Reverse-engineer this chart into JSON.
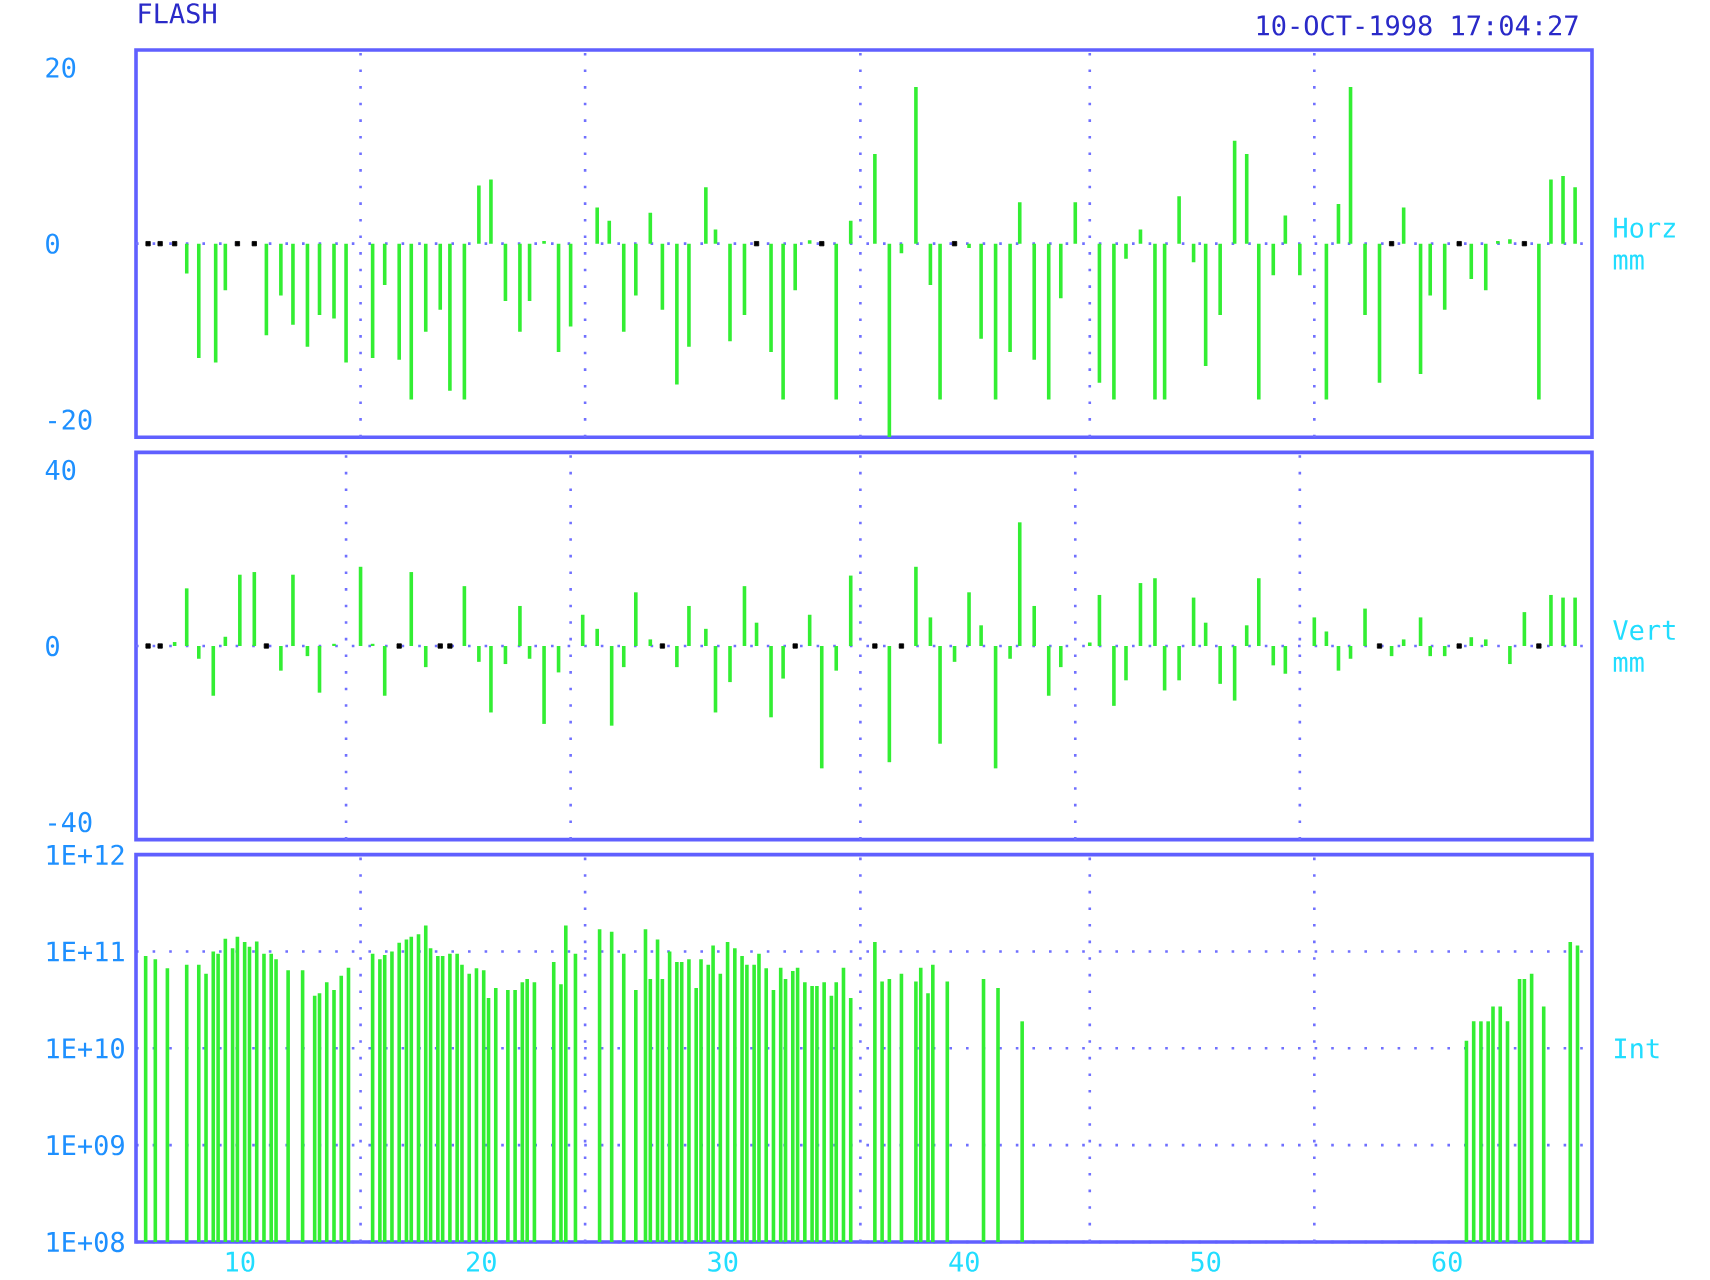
{
  "chart_data": [
    {
      "type": "bar",
      "title": "FLASH",
      "subtitle": "10-OCT-1998 17:04:27",
      "ylabel": "Horz mm",
      "xlim": [
        5.7,
        66
      ],
      "ylim": [
        -22,
        22
      ],
      "yticks": [
        -20,
        0,
        20
      ],
      "tick_labels": "y",
      "ref_lines": [
        {
          "axis": "y",
          "value": 0,
          "line_style": "dotted",
          "color": "#7070ff"
        },
        {
          "axis": "x",
          "value": 15.0,
          "line_style": "dotted",
          "color": "#7070ff"
        },
        {
          "axis": "x",
          "value": 24.3,
          "line_style": "dotted",
          "color": "#7070ff"
        },
        {
          "axis": "x",
          "value": 35.7,
          "line_style": "dotted",
          "color": "#7070ff"
        },
        {
          "axis": "x",
          "value": 45.2,
          "line_style": "dotted",
          "color": "#7070ff"
        },
        {
          "axis": "x",
          "value": 54.5,
          "line_style": "dotted",
          "color": "#7070ff"
        }
      ],
      "series": [
        {
          "color": "#33ee33",
          "x": [
            7.8,
            8.3,
            9.0,
            9.4,
            11.1,
            11.7,
            12.2,
            12.8,
            13.3,
            13.9,
            14.4,
            15.5,
            16.0,
            16.6,
            17.1,
            17.7,
            18.3,
            18.7,
            19.3,
            19.9,
            20.4,
            21.0,
            21.6,
            22.0,
            22.6,
            23.2,
            23.7,
            24.8,
            25.3,
            25.9,
            26.4,
            27.0,
            27.5,
            28.1,
            28.6,
            29.3,
            29.7,
            30.3,
            30.9,
            32.0,
            32.5,
            33.0,
            33.6,
            34.7,
            35.3,
            36.3,
            36.9,
            37.4,
            38.0,
            38.6,
            39.0,
            40.2,
            40.7,
            41.3,
            41.9,
            42.3,
            42.9,
            43.5,
            44.0,
            44.6,
            45.6,
            46.2,
            46.7,
            47.3,
            47.9,
            48.3,
            48.9,
            49.5,
            50.0,
            50.6,
            51.2,
            51.7,
            52.2,
            52.8,
            53.3,
            53.9,
            55.0,
            55.5,
            56.0,
            56.6,
            57.2,
            58.2,
            58.9,
            59.3,
            59.9,
            61.0,
            61.6,
            62.1,
            62.6,
            63.8,
            64.3,
            64.8,
            65.3
          ],
          "values": [
            -3.4,
            -13.0,
            -13.5,
            -5.3,
            -10.4,
            -5.9,
            -9.2,
            -11.7,
            -8.1,
            -8.5,
            -13.5,
            -13.0,
            -4.7,
            -13.2,
            -17.7,
            -10.0,
            -7.5,
            -16.7,
            -17.7,
            6.6,
            7.3,
            -6.5,
            -10.0,
            -6.5,
            0.3,
            -12.3,
            -9.4,
            4.1,
            2.6,
            -10.0,
            -5.9,
            3.5,
            -7.5,
            -16.0,
            -11.7,
            6.4,
            1.6,
            -11.1,
            -8.1,
            -12.3,
            -17.7,
            -5.3,
            0.4,
            -17.7,
            2.6,
            10.2,
            -22,
            -1.1,
            17.8,
            -4.7,
            -17.7,
            -0.5,
            -10.8,
            -17.7,
            -12.3,
            4.7,
            -13.2,
            -17.7,
            -6.2,
            4.7,
            -15.8,
            -17.7,
            -1.7,
            1.6,
            -17.7,
            -17.7,
            5.4,
            -2.1,
            -13.9,
            -8.1,
            11.7,
            10.2,
            -17.7,
            -3.6,
            3.2,
            -3.6,
            -17.7,
            4.5,
            17.8,
            -8.1,
            -15.8,
            4.1,
            -14.8,
            -5.9,
            -7.5,
            -4.0,
            -5.3,
            0.3,
            0.5,
            -17.7,
            7.3,
            7.7,
            6.4
          ]
        },
        {
          "type": "scatter",
          "marker": "square",
          "color": "#000000",
          "x": [
            6.2,
            6.7,
            7.3,
            9.9,
            10.6,
            31.4,
            34.1,
            39.6,
            57.7,
            60.5,
            63.2
          ],
          "values": [
            0,
            0,
            0,
            0,
            0,
            0,
            0,
            0,
            0,
            0,
            0
          ]
        }
      ]
    },
    {
      "type": "bar",
      "ylabel": "Vert mm",
      "xlim": [
        5.7,
        66
      ],
      "ylim": [
        -44,
        44
      ],
      "yticks": [
        -40,
        0,
        40
      ],
      "tick_labels": "y",
      "ref_lines": [
        {
          "axis": "y",
          "value": 0,
          "line_style": "dotted",
          "color": "#7070ff"
        },
        {
          "axis": "x",
          "value": 14.4,
          "line_style": "dotted",
          "color": "#7070ff"
        },
        {
          "axis": "x",
          "value": 23.7,
          "line_style": "dotted",
          "color": "#7070ff"
        },
        {
          "axis": "x",
          "value": 35.7,
          "line_style": "dotted",
          "color": "#7070ff"
        },
        {
          "axis": "x",
          "value": 44.6,
          "line_style": "dotted",
          "color": "#7070ff"
        },
        {
          "axis": "x",
          "value": 53.9,
          "line_style": "dotted",
          "color": "#7070ff"
        }
      ],
      "series": [
        {
          "color": "#33ee33",
          "x": [
            7.3,
            7.8,
            8.3,
            8.9,
            9.4,
            10.0,
            10.6,
            11.7,
            12.2,
            12.8,
            13.3,
            13.9,
            15.0,
            15.5,
            16.0,
            17.1,
            17.7,
            19.3,
            19.9,
            20.4,
            21.0,
            21.6,
            22.0,
            22.6,
            23.2,
            24.2,
            24.8,
            25.4,
            25.9,
            26.4,
            27.0,
            28.1,
            28.6,
            29.3,
            29.7,
            30.3,
            30.9,
            31.4,
            32.0,
            32.5,
            33.6,
            34.1,
            34.7,
            35.3,
            36.9,
            38.0,
            38.6,
            39.0,
            39.6,
            40.2,
            40.7,
            41.3,
            41.9,
            42.3,
            42.9,
            43.5,
            44.0,
            45.2,
            45.6,
            46.2,
            46.7,
            47.3,
            47.9,
            48.3,
            48.9,
            49.5,
            50.0,
            50.6,
            51.2,
            51.7,
            52.2,
            52.8,
            53.3,
            54.5,
            55.0,
            55.5,
            56.0,
            56.6,
            57.7,
            58.2,
            58.9,
            59.3,
            59.9,
            61.0,
            61.6,
            62.6,
            63.2,
            64.3,
            64.8,
            65.3
          ],
          "values": [
            0.9,
            13.1,
            -2.9,
            -11.3,
            2.1,
            16.2,
            16.8,
            -5.6,
            16.2,
            -2.3,
            -10.6,
            0.5,
            18.0,
            0.5,
            -11.3,
            16.8,
            -4.8,
            13.6,
            -3.6,
            -15.1,
            -4.1,
            9.1,
            -2.9,
            -17.7,
            -6.0,
            7.1,
            3.9,
            -18.1,
            -4.8,
            12.2,
            1.5,
            -4.8,
            9.1,
            3.9,
            -15.1,
            -8.2,
            13.6,
            5.3,
            -16.2,
            -7.4,
            7.1,
            -27.8,
            -5.6,
            16.0,
            -26.4,
            18.0,
            6.5,
            -22.2,
            -3.6,
            12.2,
            4.7,
            -27.8,
            -2.9,
            28.1,
            9.1,
            -11.3,
            -4.8,
            0.8,
            11.6,
            -13.6,
            -7.8,
            14.3,
            15.4,
            -10.1,
            -7.8,
            11.0,
            5.3,
            -8.6,
            -12.4,
            4.7,
            15.4,
            -4.4,
            -6.3,
            6.5,
            3.3,
            -5.6,
            -2.9,
            8.5,
            -2.3,
            1.5,
            6.5,
            -2.3,
            -2.3,
            2.0,
            1.5,
            -4.1,
            7.7,
            11.6,
            11.0,
            11.0
          ]
        },
        {
          "type": "scatter",
          "marker": "square",
          "color": "#000000",
          "x": [
            6.2,
            6.7,
            11.1,
            16.6,
            18.3,
            18.7,
            27.5,
            33.0,
            36.3,
            37.4,
            57.2,
            60.5,
            63.8
          ],
          "values": [
            0,
            0,
            0,
            0,
            0,
            0,
            0,
            0,
            0,
            0,
            0,
            0,
            0
          ]
        }
      ]
    },
    {
      "type": "bar",
      "ylabel": "Int",
      "xlim": [
        5.7,
        66
      ],
      "ylim": [
        100000000.0,
        1000000000000.0
      ],
      "log": "y",
      "grid": "y",
      "xticks": [
        10,
        20,
        30,
        40,
        50,
        60
      ],
      "yticks": [
        {
          "value": 100000000.0,
          "label": "1E+08"
        },
        {
          "value": 1000000000.0,
          "label": "1E+09"
        },
        {
          "value": 10000000000.0,
          "label": "1E+10"
        },
        {
          "value": 100000000000.0,
          "label": "1E+11"
        },
        {
          "value": 1000000000000.0,
          "label": "1E+12"
        }
      ],
      "ref_lines": [
        {
          "axis": "x",
          "value": 15.0,
          "line_style": "dotted",
          "color": "#7070ff"
        },
        {
          "axis": "x",
          "value": 24.3,
          "line_style": "dotted",
          "color": "#7070ff"
        },
        {
          "axis": "x",
          "value": 35.7,
          "line_style": "dotted",
          "color": "#7070ff"
        },
        {
          "axis": "x",
          "value": 45.2,
          "line_style": "dotted",
          "color": "#7070ff"
        },
        {
          "axis": "x",
          "value": 54.5,
          "line_style": "dotted",
          "color": "#7070ff"
        }
      ],
      "series": [
        {
          "color": "#33ee33",
          "x": [
            6.1,
            6.5,
            7.0,
            7.8,
            8.3,
            8.6,
            8.9,
            9.1,
            9.4,
            9.7,
            9.9,
            10.2,
            10.4,
            10.7,
            11.0,
            11.3,
            11.5,
            12.0,
            12.6,
            13.1,
            13.3,
            13.6,
            13.9,
            14.2,
            14.5,
            15.5,
            15.8,
            16.0,
            16.3,
            16.6,
            16.9,
            17.1,
            17.4,
            17.7,
            17.9,
            18.2,
            18.4,
            18.7,
            19.0,
            19.2,
            19.5,
            19.8,
            20.1,
            20.3,
            20.6,
            21.1,
            21.4,
            21.7,
            21.9,
            22.2,
            23.0,
            23.3,
            23.5,
            23.9,
            24.9,
            25.4,
            25.9,
            26.4,
            26.8,
            27.0,
            27.3,
            27.5,
            27.8,
            28.1,
            28.3,
            28.6,
            28.9,
            29.1,
            29.4,
            29.6,
            29.9,
            30.2,
            30.5,
            30.8,
            31.0,
            31.3,
            31.5,
            31.8,
            32.1,
            32.4,
            32.6,
            32.9,
            33.1,
            33.4,
            33.7,
            33.9,
            34.2,
            34.5,
            34.7,
            35.0,
            35.3,
            36.3,
            36.6,
            36.9,
            37.4,
            38.0,
            38.2,
            38.5,
            38.7,
            39.3,
            40.8,
            41.4,
            42.4,
            60.8,
            61.1,
            61.4,
            61.7,
            61.9,
            62.2,
            62.5,
            63.0,
            63.2,
            63.5,
            64.0,
            65.1,
            65.4
          ],
          "values": [
            90000000000.0,
            83000000000.0,
            67000000000.0,
            73000000000.0,
            73000000000.0,
            59000000000.0,
            100000000000.0,
            95000000000.0,
            135000000000.0,
            108000000000.0,
            142000000000.0,
            125000000000.0,
            112000000000.0,
            127000000000.0,
            95000000000.0,
            95000000000.0,
            83000000000.0,
            64000000000.0,
            64000000000.0,
            35000000000.0,
            37000000000.0,
            48000000000.0,
            40000000000.0,
            56000000000.0,
            68000000000.0,
            95000000000.0,
            83000000000.0,
            92000000000.0,
            100000000000.0,
            123000000000.0,
            133000000000.0,
            142000000000.0,
            151000000000.0,
            186000000000.0,
            108000000000.0,
            90000000000.0,
            90000000000.0,
            95000000000.0,
            95000000000.0,
            73000000000.0,
            59000000000.0,
            67000000000.0,
            64000000000.0,
            33000000000.0,
            42000000000.0,
            40000000000.0,
            40000000000.0,
            48000000000.0,
            52000000000.0,
            48000000000.0,
            78000000000.0,
            46000000000.0,
            186000000000.0,
            95000000000.0,
            170000000000.0,
            160000000000.0,
            95000000000.0,
            40000000000.0,
            170000000000.0,
            52000000000.0,
            133000000000.0,
            52000000000.0,
            100000000000.0,
            78000000000.0,
            78000000000.0,
            83000000000.0,
            42000000000.0,
            83000000000.0,
            73000000000.0,
            115000000000.0,
            59000000000.0,
            125000000000.0,
            108000000000.0,
            90000000000.0,
            73000000000.0,
            73000000000.0,
            95000000000.0,
            67000000000.0,
            40000000000.0,
            68000000000.0,
            52000000000.0,
            63000000000.0,
            68000000000.0,
            48000000000.0,
            44000000000.0,
            44000000000.0,
            48000000000.0,
            35000000000.0,
            48000000000.0,
            68000000000.0,
            33000000000.0,
            125000000000.0,
            49000000000.0,
            52000000000.0,
            59000000000.0,
            49000000000.0,
            68000000000.0,
            37000000000.0,
            73000000000.0,
            49000000000.0,
            52000000000.0,
            42000000000.0,
            19000000000.0,
            12000000000.0,
            19000000000.0,
            19000000000.0,
            19000000000.0,
            27000000000.0,
            27000000000.0,
            19000000000.0,
            52000000000.0,
            52000000000.0,
            59000000000.0,
            27000000000.0,
            125000000000.0,
            115000000000.0
          ]
        }
      ]
    }
  ]
}
